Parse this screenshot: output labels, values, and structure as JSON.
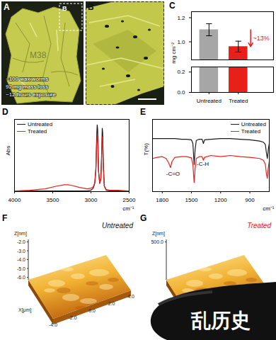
{
  "panels": {
    "A": {
      "panel_label": "A",
      "inset_label": "B",
      "bag_text": "M38",
      "caption": [
        "~100 wax worms",
        "92 mg mass loss",
        "~12 hours exposure"
      ]
    },
    "B": {
      "panel_label": "B"
    },
    "F": {
      "panel_label": "F",
      "title": "Untreated",
      "z_label": "Z[nm]",
      "z_ticks": [
        "-6.0",
        "-5.0",
        "-4.0",
        "-3.0",
        "-2.0"
      ],
      "x_label": "X[μm]",
      "x_ticks": [
        "-4.0",
        "-2.0",
        "0.0",
        "2.0",
        "4.0"
      ]
    },
    "G": {
      "panel_label": "G",
      "title": "Treated",
      "z_label": "Z[nm]",
      "z_ticks": [
        "500.0"
      ]
    }
  },
  "watermark": "乱历史",
  "chart_data": [
    {
      "panel_label": "C",
      "type": "bar",
      "categories": [
        "Untreated",
        "Treated"
      ],
      "values": [
        1.1,
        0.96
      ],
      "errors": [
        0.05,
        0.045
      ],
      "colors": [
        "#a6a6a6",
        "#e8201a"
      ],
      "ylabel": "mg cm⁻²",
      "ylim": [
        0,
        1.25
      ],
      "ybreak": [
        0.25,
        0.85
      ],
      "yticks": [
        {
          "value": 0,
          "label": "0.0"
        },
        {
          "value": 0.2,
          "label": "0.2"
        },
        {
          "value": 1,
          "label": "1.0"
        },
        {
          "value": 1.2,
          "label": "1.2"
        }
      ],
      "annotations": [
        {
          "text": "~13%",
          "color": "#e8201a"
        }
      ]
    },
    {
      "panel_label": "D",
      "type": "line",
      "xlabel": "cm⁻¹",
      "ylabel": "Abs",
      "x": [
        4000,
        3800,
        3600,
        3450,
        3350,
        3300,
        3250,
        3150,
        3050,
        3000,
        2970,
        2950,
        2935,
        2925,
        2918,
        2912,
        2900,
        2885,
        2870,
        2860,
        2852,
        2846,
        2838,
        2825,
        2800,
        2750,
        2650,
        2500
      ],
      "series": [
        {
          "name": "Untreated",
          "color": "#1a1a1a",
          "values": [
            0.01,
            0.01,
            0.01,
            0.01,
            0.01,
            0.01,
            0.01,
            0.01,
            0.01,
            0.02,
            0.05,
            0.12,
            0.35,
            0.8,
            0.97,
            0.9,
            0.3,
            0.12,
            0.2,
            0.55,
            0.92,
            0.85,
            0.4,
            0.08,
            0.02,
            0.01,
            0.01,
            0.01
          ]
        },
        {
          "name": "Treated",
          "color": "#e8201a",
          "values": [
            0.01,
            0.02,
            0.04,
            0.08,
            0.1,
            0.1,
            0.09,
            0.06,
            0.04,
            0.05,
            0.07,
            0.13,
            0.3,
            0.68,
            0.83,
            0.78,
            0.28,
            0.12,
            0.18,
            0.48,
            0.8,
            0.74,
            0.35,
            0.08,
            0.03,
            0.02,
            0.02,
            0.01
          ]
        }
      ],
      "xlim": [
        4000,
        2500
      ],
      "xticks": [
        4000,
        3500,
        3000,
        2500
      ],
      "ylim": [
        0,
        1.05
      ],
      "tick_labels": "x",
      "legend": "top-left"
    },
    {
      "panel_label": "E",
      "type": "line",
      "xlabel": "cm⁻¹",
      "ylabel": "T(%)",
      "x": [
        1900,
        1850,
        1800,
        1760,
        1735,
        1715,
        1700,
        1670,
        1600,
        1550,
        1500,
        1485,
        1472,
        1462,
        1450,
        1420,
        1390,
        1377,
        1365,
        1300,
        1200,
        1100,
        1000,
        900,
        800,
        760,
        740,
        730,
        720,
        710,
        700
      ],
      "series": [
        {
          "name": "Untreated",
          "color": "#1a1a1a",
          "values": [
            88,
            88,
            88,
            88,
            88,
            88,
            88,
            88,
            87,
            87,
            86,
            80,
            45,
            70,
            85,
            87,
            87,
            80,
            86,
            87,
            88,
            88,
            87,
            86,
            84,
            82,
            78,
            65,
            55,
            70,
            80
          ]
        },
        {
          "name": "Treated",
          "color": "#e8201a",
          "values": [
            55,
            57,
            58,
            55,
            48,
            40,
            50,
            57,
            58,
            58,
            56,
            45,
            15,
            38,
            55,
            58,
            58,
            52,
            57,
            60,
            58,
            60,
            58,
            57,
            55,
            52,
            45,
            30,
            22,
            40,
            50
          ]
        }
      ],
      "xlim": [
        1900,
        700
      ],
      "xticks": [
        1800,
        1500,
        1200,
        900
      ],
      "ylim": [
        0,
        120
      ],
      "tick_labels": "x",
      "legend": "top-right",
      "annotations": [
        {
          "text": "-C-H",
          "x": 1445,
          "y": 46
        },
        {
          "text": "-C=O",
          "x": 1760,
          "y": 30
        }
      ]
    }
  ]
}
